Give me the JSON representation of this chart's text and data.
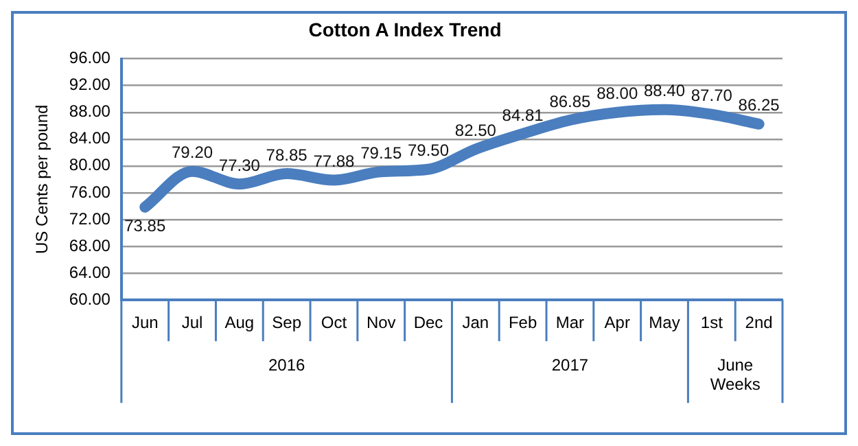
{
  "chart_data": {
    "type": "line",
    "title": "Cotton A Index Trend",
    "ylabel": "US Cents per pound",
    "categories": [
      "Jun",
      "Jul",
      "Aug",
      "Sep",
      "Oct",
      "Nov",
      "Dec",
      "Jan",
      "Feb",
      "Mar",
      "Apr",
      "May",
      "1st",
      "2nd"
    ],
    "series": [
      {
        "color": "#4a7ebf",
        "values": [
          73.85,
          79.2,
          77.3,
          78.85,
          77.88,
          79.15,
          79.5,
          82.5,
          84.81,
          86.85,
          88.0,
          88.4,
          87.7,
          86.25
        ],
        "value_labels": [
          "73.85",
          "79.20",
          "77.30",
          "78.85",
          "77.88",
          "79.15",
          "79.50",
          "82.50",
          "84.81",
          "86.85",
          "88.00",
          "88.40",
          "87.70",
          "86.25"
        ]
      }
    ],
    "annotations": [
      "2016",
      "2017",
      "June Weeks"
    ],
    "ylim": [
      60,
      96
    ],
    "yticks": [
      {
        "value": 60,
        "label": "60.00"
      },
      {
        "value": 64,
        "label": "64.00"
      },
      {
        "value": 68,
        "label": "68.00"
      },
      {
        "value": 72,
        "label": "72.00"
      },
      {
        "value": 76,
        "label": "76.00"
      },
      {
        "value": 80,
        "label": "80.00"
      },
      {
        "value": 84,
        "label": "84.00"
      },
      {
        "value": 88,
        "label": "88.00"
      },
      {
        "value": 92,
        "label": "92.00"
      },
      {
        "value": 96,
        "label": "96.00"
      }
    ],
    "grid": "y",
    "legend": false,
    "marker": "none",
    "line_style": "solid"
  }
}
